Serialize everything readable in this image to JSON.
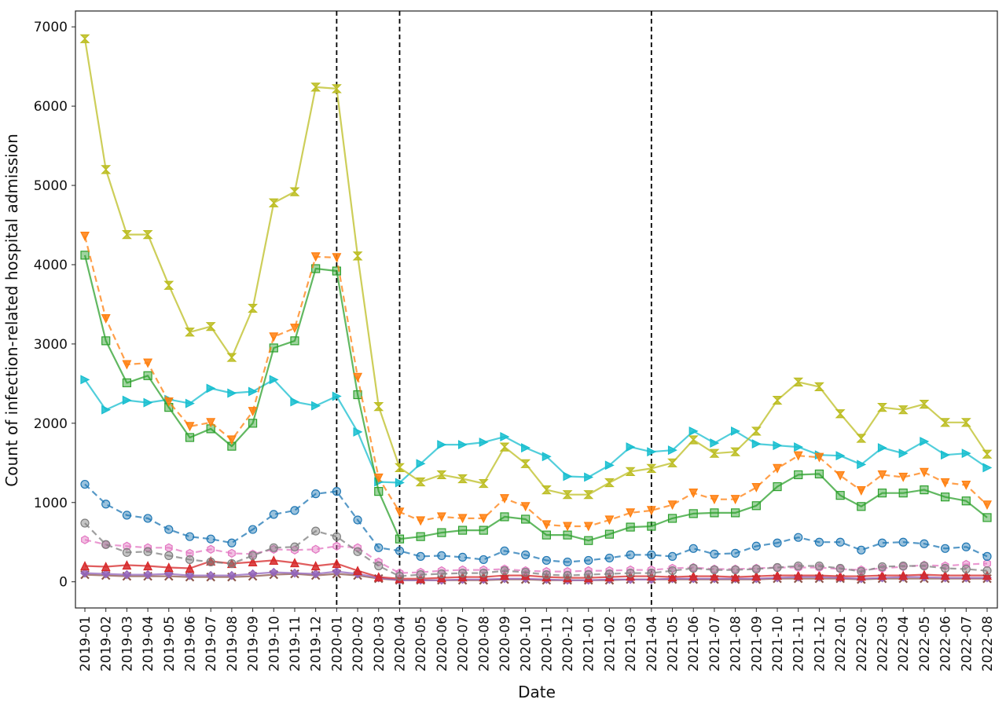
{
  "chart_data": {
    "type": "line",
    "title": "",
    "xlabel": "Date",
    "ylabel": "Count of infection-related hospital admission",
    "ylim": [
      -330,
      7200
    ],
    "yticks": [
      0,
      1000,
      2000,
      3000,
      4000,
      5000,
      6000,
      7000
    ],
    "grid": false,
    "legend": "none",
    "categories": [
      "2019-01",
      "2019-02",
      "2019-03",
      "2019-04",
      "2019-05",
      "2019-06",
      "2019-07",
      "2019-08",
      "2019-09",
      "2019-10",
      "2019-11",
      "2019-12",
      "2020-01",
      "2020-02",
      "2020-03",
      "2020-04",
      "2020-05",
      "2020-06",
      "2020-07",
      "2020-08",
      "2020-09",
      "2020-10",
      "2020-11",
      "2020-12",
      "2021-01",
      "2021-02",
      "2021-03",
      "2021-04",
      "2021-05",
      "2021-06",
      "2021-07",
      "2021-08",
      "2021-09",
      "2021-10",
      "2021-11",
      "2021-12",
      "2022-01",
      "2022-02",
      "2022-03",
      "2022-04",
      "2022-05",
      "2022-06",
      "2022-07",
      "2022-08"
    ],
    "vlines": [
      "2020-01",
      "2020-04",
      "2021-04"
    ],
    "series": [
      {
        "color": "#bcbd22",
        "dash": "solid",
        "marker": "hourglass",
        "values": [
          6850,
          5200,
          4380,
          4380,
          3740,
          3150,
          3220,
          2830,
          3450,
          4780,
          4920,
          6240,
          6220,
          4110,
          2210,
          1440,
          1260,
          1350,
          1300,
          1240,
          1700,
          1490,
          1160,
          1100,
          1100,
          1250,
          1390,
          1430,
          1500,
          1790,
          1620,
          1640,
          1900,
          2290,
          2520,
          2460,
          2120,
          1810,
          2200,
          2170,
          2240,
          2010,
          2010,
          1610
        ]
      },
      {
        "color": "#ff7f0e",
        "dash": "dashed",
        "marker": "triangle-down",
        "values": [
          4360,
          3320,
          2740,
          2760,
          2270,
          1960,
          2010,
          1790,
          2150,
          3090,
          3200,
          4100,
          4090,
          2580,
          1310,
          880,
          770,
          820,
          800,
          800,
          1050,
          950,
          720,
          700,
          700,
          780,
          870,
          900,
          970,
          1120,
          1040,
          1040,
          1190,
          1430,
          1590,
          1570,
          1340,
          1150,
          1350,
          1320,
          1380,
          1250,
          1220,
          970
        ]
      },
      {
        "color": "#2ca02c",
        "dash": "solid",
        "marker": "square",
        "values": [
          4120,
          3040,
          2510,
          2600,
          2200,
          1820,
          1930,
          1710,
          2000,
          2950,
          3040,
          3950,
          3920,
          2360,
          1140,
          540,
          570,
          620,
          650,
          650,
          820,
          790,
          590,
          590,
          520,
          600,
          690,
          700,
          800,
          860,
          870,
          870,
          960,
          1200,
          1350,
          1360,
          1090,
          950,
          1120,
          1120,
          1160,
          1070,
          1020,
          810
        ]
      },
      {
        "color": "#17becf",
        "dash": "solid",
        "marker": "triangle-right",
        "values": [
          2550,
          2170,
          2290,
          2260,
          2300,
          2250,
          2440,
          2380,
          2400,
          2550,
          2270,
          2220,
          2340,
          1890,
          1260,
          1250,
          1490,
          1730,
          1730,
          1760,
          1830,
          1690,
          1580,
          1330,
          1320,
          1470,
          1700,
          1640,
          1660,
          1900,
          1750,
          1900,
          1740,
          1720,
          1700,
          1600,
          1590,
          1480,
          1690,
          1620,
          1770,
          1600,
          1620,
          1440
        ]
      },
      {
        "color": "#1f77b4",
        "dash": "dashed",
        "marker": "circle",
        "values": [
          1230,
          980,
          840,
          800,
          660,
          570,
          540,
          490,
          660,
          850,
          900,
          1110,
          1140,
          780,
          430,
          390,
          320,
          330,
          310,
          280,
          390,
          340,
          270,
          250,
          270,
          300,
          340,
          340,
          320,
          420,
          350,
          360,
          450,
          490,
          560,
          500,
          500,
          400,
          490,
          500,
          480,
          420,
          440,
          320
        ]
      },
      {
        "color": "#7f7f7f",
        "dash": "dashed",
        "marker": "circle",
        "values": [
          740,
          470,
          370,
          380,
          330,
          280,
          250,
          230,
          330,
          430,
          440,
          640,
          570,
          380,
          200,
          70,
          90,
          100,
          110,
          110,
          140,
          120,
          90,
          80,
          90,
          100,
          110,
          110,
          140,
          170,
          150,
          150,
          160,
          180,
          200,
          200,
          170,
          130,
          190,
          200,
          200,
          170,
          160,
          140
        ]
      },
      {
        "color": "#e377c2",
        "dash": "dashed",
        "marker": "hexagon",
        "values": [
          530,
          470,
          450,
          430,
          430,
          360,
          410,
          360,
          350,
          410,
          400,
          410,
          450,
          430,
          250,
          110,
          120,
          140,
          150,
          150,
          160,
          140,
          130,
          130,
          140,
          140,
          150,
          150,
          170,
          180,
          160,
          160,
          170,
          180,
          180,
          180,
          160,
          150,
          170,
          190,
          210,
          200,
          220,
          230
        ]
      },
      {
        "color": "#d62728",
        "dash": "solid",
        "marker": "triangle-up",
        "values": [
          200,
          190,
          210,
          200,
          180,
          170,
          260,
          230,
          250,
          270,
          240,
          200,
          230,
          140,
          60,
          40,
          40,
          50,
          60,
          60,
          80,
          80,
          60,
          50,
          50,
          60,
          70,
          70,
          60,
          70,
          70,
          60,
          70,
          80,
          80,
          80,
          70,
          70,
          80,
          80,
          90,
          80,
          80,
          80
        ]
      },
      {
        "color": "#9467bd",
        "dash": "solid",
        "marker": "diamond",
        "values": [
          110,
          100,
          90,
          90,
          100,
          80,
          80,
          80,
          100,
          120,
          110,
          100,
          130,
          100,
          50,
          20,
          20,
          20,
          30,
          30,
          40,
          40,
          30,
          20,
          20,
          30,
          30,
          30,
          40,
          40,
          40,
          40,
          40,
          50,
          60,
          60,
          50,
          40,
          50,
          60,
          60,
          50,
          50,
          50
        ]
      },
      {
        "color": "#8c564b",
        "dash": "solid",
        "marker": "x",
        "values": [
          90,
          80,
          70,
          70,
          70,
          60,
          60,
          60,
          70,
          90,
          100,
          80,
          100,
          80,
          40,
          20,
          20,
          20,
          20,
          20,
          30,
          30,
          20,
          20,
          20,
          20,
          30,
          30,
          30,
          30,
          30,
          30,
          30,
          40,
          40,
          40,
          40,
          30,
          40,
          40,
          40,
          40,
          40,
          40
        ]
      }
    ]
  }
}
